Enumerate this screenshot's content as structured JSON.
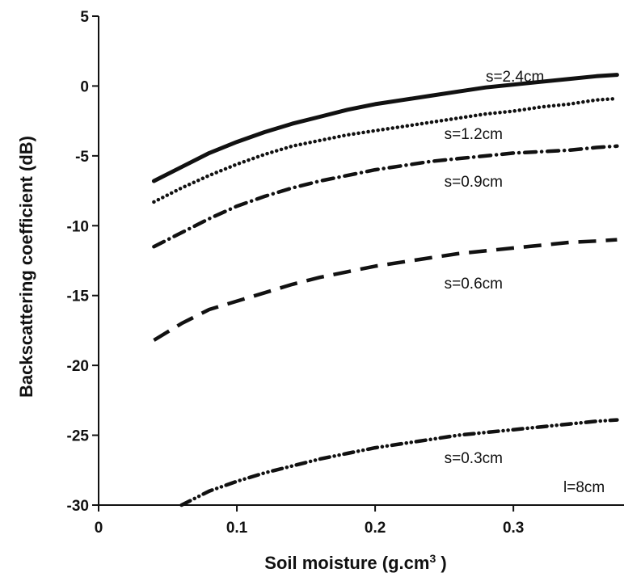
{
  "chart_data": {
    "type": "line",
    "title": "",
    "xlabel": "Soil moisture (g.cm",
    "xlabel_sup": "3",
    "xlabel_end": " )",
    "ylabel": "Backscattering coefficient (dB)",
    "xlim": [
      0,
      0.38
    ],
    "ylim": [
      -30,
      5
    ],
    "xticks": [
      0,
      0.1,
      0.2,
      0.3
    ],
    "xtick_labels": [
      "0",
      "0.1",
      "0.2",
      "0.3"
    ],
    "yticks": [
      5,
      0,
      -5,
      -10,
      -15,
      -20,
      -25,
      -30
    ],
    "ytick_labels": [
      "5",
      "0",
      "-5",
      "-10",
      "-15",
      "-20",
      "-25",
      "-30"
    ],
    "grid": false,
    "annotation": "l=8cm",
    "series": [
      {
        "name": "s=2.4cm",
        "style": "solid",
        "x": [
          0.04,
          0.06,
          0.08,
          0.1,
          0.12,
          0.14,
          0.16,
          0.18,
          0.2,
          0.22,
          0.24,
          0.26,
          0.28,
          0.3,
          0.32,
          0.34,
          0.36,
          0.375
        ],
        "y": [
          -6.8,
          -5.8,
          -4.8,
          -4.0,
          -3.3,
          -2.7,
          -2.2,
          -1.7,
          -1.3,
          -1.0,
          -0.7,
          -0.4,
          -0.1,
          0.1,
          0.3,
          0.5,
          0.7,
          0.8
        ],
        "label_at": [
          0.28,
          0.3
        ]
      },
      {
        "name": "s=1.2cm",
        "style": "dotted",
        "x": [
          0.04,
          0.06,
          0.08,
          0.1,
          0.12,
          0.14,
          0.16,
          0.18,
          0.2,
          0.22,
          0.24,
          0.26,
          0.28,
          0.3,
          0.32,
          0.34,
          0.36,
          0.375
        ],
        "y": [
          -8.3,
          -7.3,
          -6.4,
          -5.6,
          -4.9,
          -4.3,
          -3.9,
          -3.5,
          -3.2,
          -2.9,
          -2.6,
          -2.3,
          -2.0,
          -1.8,
          -1.5,
          -1.3,
          -1.0,
          -0.9
        ],
        "label_at": [
          0.25,
          -3.8
        ]
      },
      {
        "name": "s=0.9cm",
        "style": "dashdot",
        "x": [
          0.04,
          0.06,
          0.08,
          0.1,
          0.12,
          0.14,
          0.16,
          0.18,
          0.2,
          0.22,
          0.24,
          0.26,
          0.28,
          0.3,
          0.32,
          0.34,
          0.36,
          0.375
        ],
        "y": [
          -11.5,
          -10.5,
          -9.5,
          -8.6,
          -7.9,
          -7.3,
          -6.8,
          -6.4,
          -6.0,
          -5.7,
          -5.4,
          -5.2,
          -5.0,
          -4.8,
          -4.7,
          -4.6,
          -4.4,
          -4.3
        ],
        "label_at": [
          0.25,
          -7.2
        ]
      },
      {
        "name": "s=0.6cm",
        "style": "dashed",
        "x": [
          0.04,
          0.06,
          0.08,
          0.1,
          0.12,
          0.14,
          0.16,
          0.18,
          0.2,
          0.22,
          0.24,
          0.26,
          0.28,
          0.3,
          0.32,
          0.34,
          0.36,
          0.375
        ],
        "y": [
          -18.2,
          -17.0,
          -16.0,
          -15.4,
          -14.8,
          -14.2,
          -13.7,
          -13.3,
          -12.9,
          -12.6,
          -12.3,
          -12.0,
          -11.8,
          -11.6,
          -11.4,
          -11.2,
          -11.1,
          -11.0
        ],
        "label_at": [
          0.25,
          -14.5
        ]
      },
      {
        "name": "s=0.3cm",
        "style": "dashdotdot",
        "x": [
          0.06,
          0.08,
          0.1,
          0.12,
          0.14,
          0.16,
          0.18,
          0.2,
          0.22,
          0.24,
          0.26,
          0.28,
          0.3,
          0.32,
          0.34,
          0.36,
          0.375
        ],
        "y": [
          -30.0,
          -29.0,
          -28.3,
          -27.7,
          -27.2,
          -26.7,
          -26.3,
          -25.9,
          -25.6,
          -25.3,
          -25.0,
          -24.8,
          -24.6,
          -24.4,
          -24.2,
          -24.0,
          -23.9
        ],
        "label_at": [
          0.25,
          -27.0
        ]
      }
    ]
  }
}
